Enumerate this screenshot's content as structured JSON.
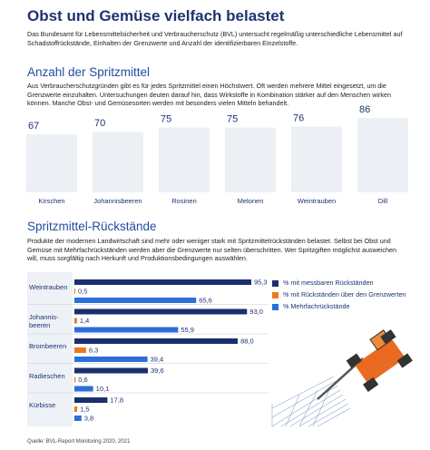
{
  "header": {
    "title": "Obst und Gemüse vielfach belastet",
    "intro": "Das Bundesamt für Lebensmittelsicherheit und Verbraucherschutz (BVL) untersucht regelmäßig unterschiedliche Lebensmittel auf Schadstoffrückstände, Einhalten der Grenzwerte und Anzahl der identifizierbaren Einzelstoffe."
  },
  "chart_data": [
    {
      "type": "bar",
      "title": "Anzahl der Spritzmittel",
      "description": "Aus Verbraucherschutzgründen gibt es für jedes Spritzmittel einen Höchstwert. Oft werden mehrere Mittel eingesetzt, um die Grenzwerte einzuhalten. Untersuchungen deuten darauf hin, dass Wirkstoffe in Kombination stärker auf den Menschen wirken können. Manche Obst- und Gemüsesorten werden mit besonders vielen Mitteln behandelt.",
      "categories": [
        "Kirschen",
        "Johannisbeeren",
        "Rosinen",
        "Melonen",
        "Weintrauben",
        "Dill"
      ],
      "values": [
        67,
        70,
        75,
        75,
        76,
        86
      ],
      "color": "#eceff3"
    },
    {
      "type": "barh",
      "title": "Spritzmittel-Rückstände",
      "description": "Produkte der modernen Landwirtschaft sind mehr oder weniger stark mit Spritzmittelrückständen belastet. Selbst bei Obst und Gemüse mit Mehrfachrückständen werden aber die Grenzwerte nur selten überschritten. Wer Spritzgiften möglichst ausweichen will, muss sorgfältig nach Herkunft und Produktionsbedingungen auswählen.",
      "categories": [
        "Weintrauben",
        "Johannis-\nbeeren",
        "Brombeeren",
        "Radieschen",
        "Kürbisse"
      ],
      "series": [
        {
          "name": "% mit messbaren Rückständen",
          "color": "#1b2f6e",
          "values": [
            95.3,
            93.0,
            88.0,
            39.6,
            17.8
          ],
          "value_labels": [
            "95,3",
            "93,0",
            "88,0",
            "39,6",
            "17,8"
          ]
        },
        {
          "name": "% mit Rückständen über den Grenzwerten",
          "color": "#ea7a22",
          "values": [
            0.5,
            1.4,
            6.3,
            0.6,
            1.5
          ],
          "value_labels": [
            "0,5",
            "1,4",
            "6,3",
            "0,6",
            "1,5"
          ]
        },
        {
          "name": "% Mehrfachrückstände",
          "color": "#2c6fd8",
          "values": [
            65.6,
            55.9,
            39.4,
            10.1,
            3.8
          ],
          "value_labels": [
            "65,6",
            "55,9",
            "39,4",
            "10,1",
            "3,8"
          ]
        }
      ],
      "legend": "top-right"
    }
  ],
  "source": "Quelle: BVL-Report Monitoring 2020, 2021"
}
